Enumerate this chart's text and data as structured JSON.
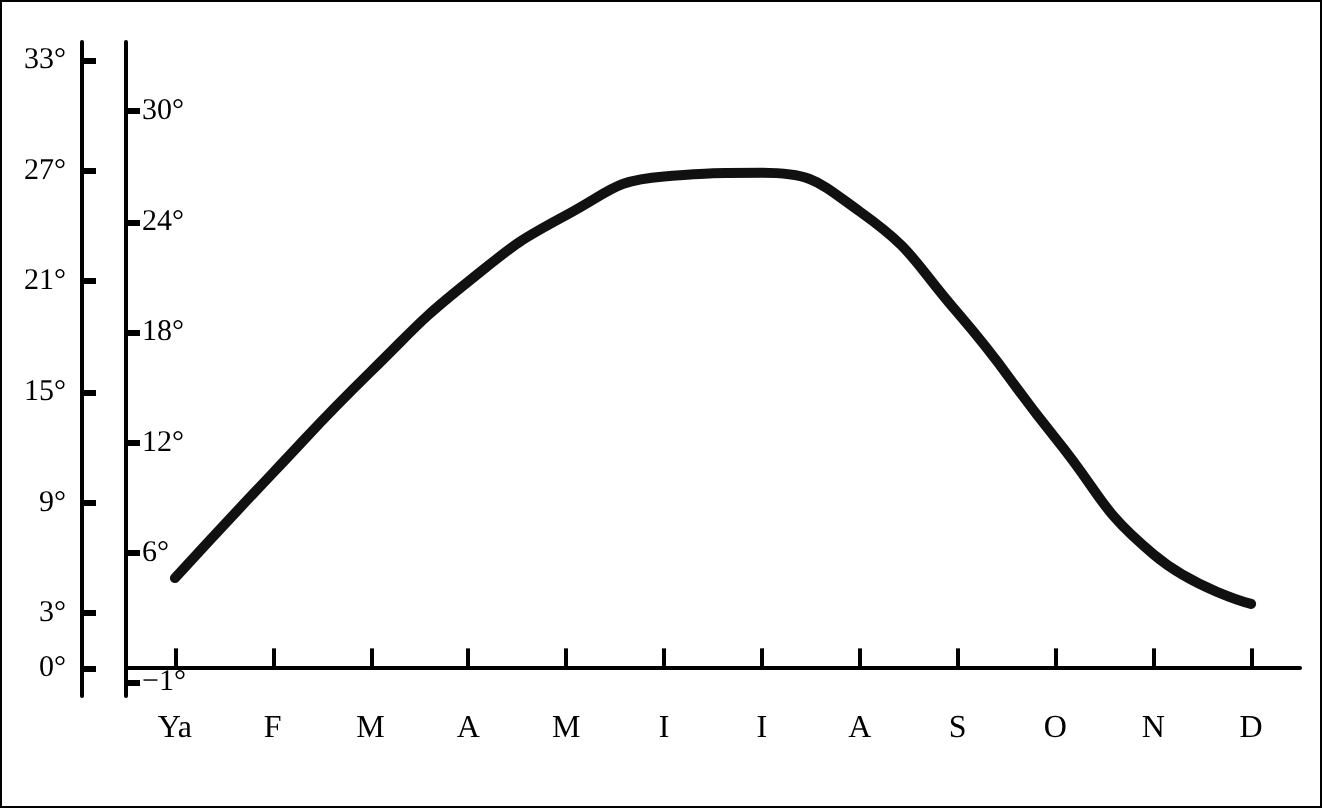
{
  "chart_data": {
    "type": "line",
    "categories": [
      "Ya",
      "F",
      "M",
      "A",
      "M",
      "I",
      "I",
      "A",
      "S",
      "O",
      "N",
      "D"
    ],
    "series": [
      {
        "color": "#111111",
        "values": [
          4.9,
          10.6,
          16.1,
          21,
          24.6,
          26.7,
          26.9,
          24.8,
          19.3,
          12.5,
          6.2,
          3.5
        ]
      }
    ],
    "ylim": [
      -1.5,
      34
    ],
    "yticks": [
      {
        "value": 0,
        "label": "0°"
      },
      {
        "value": 3,
        "label": "3°"
      },
      {
        "value": 9,
        "label": "9°"
      },
      {
        "value": 15,
        "label": "15°"
      },
      {
        "value": 21,
        "label": "21°"
      },
      {
        "value": 27,
        "label": "27°"
      },
      {
        "value": 33,
        "label": "33°"
      }
    ],
    "y2lim": [
      -1.75,
      33.75
    ],
    "y2ticks": [
      {
        "value": -1,
        "label": "−1°"
      },
      {
        "value": 6,
        "label": "6°"
      },
      {
        "value": 12,
        "label": "12°"
      },
      {
        "value": 18,
        "label": "18°"
      },
      {
        "value": 24,
        "label": "24°"
      },
      {
        "value": 30,
        "label": "30°"
      }
    ],
    "grid": false,
    "marker": "none",
    "line_style": "solid"
  }
}
